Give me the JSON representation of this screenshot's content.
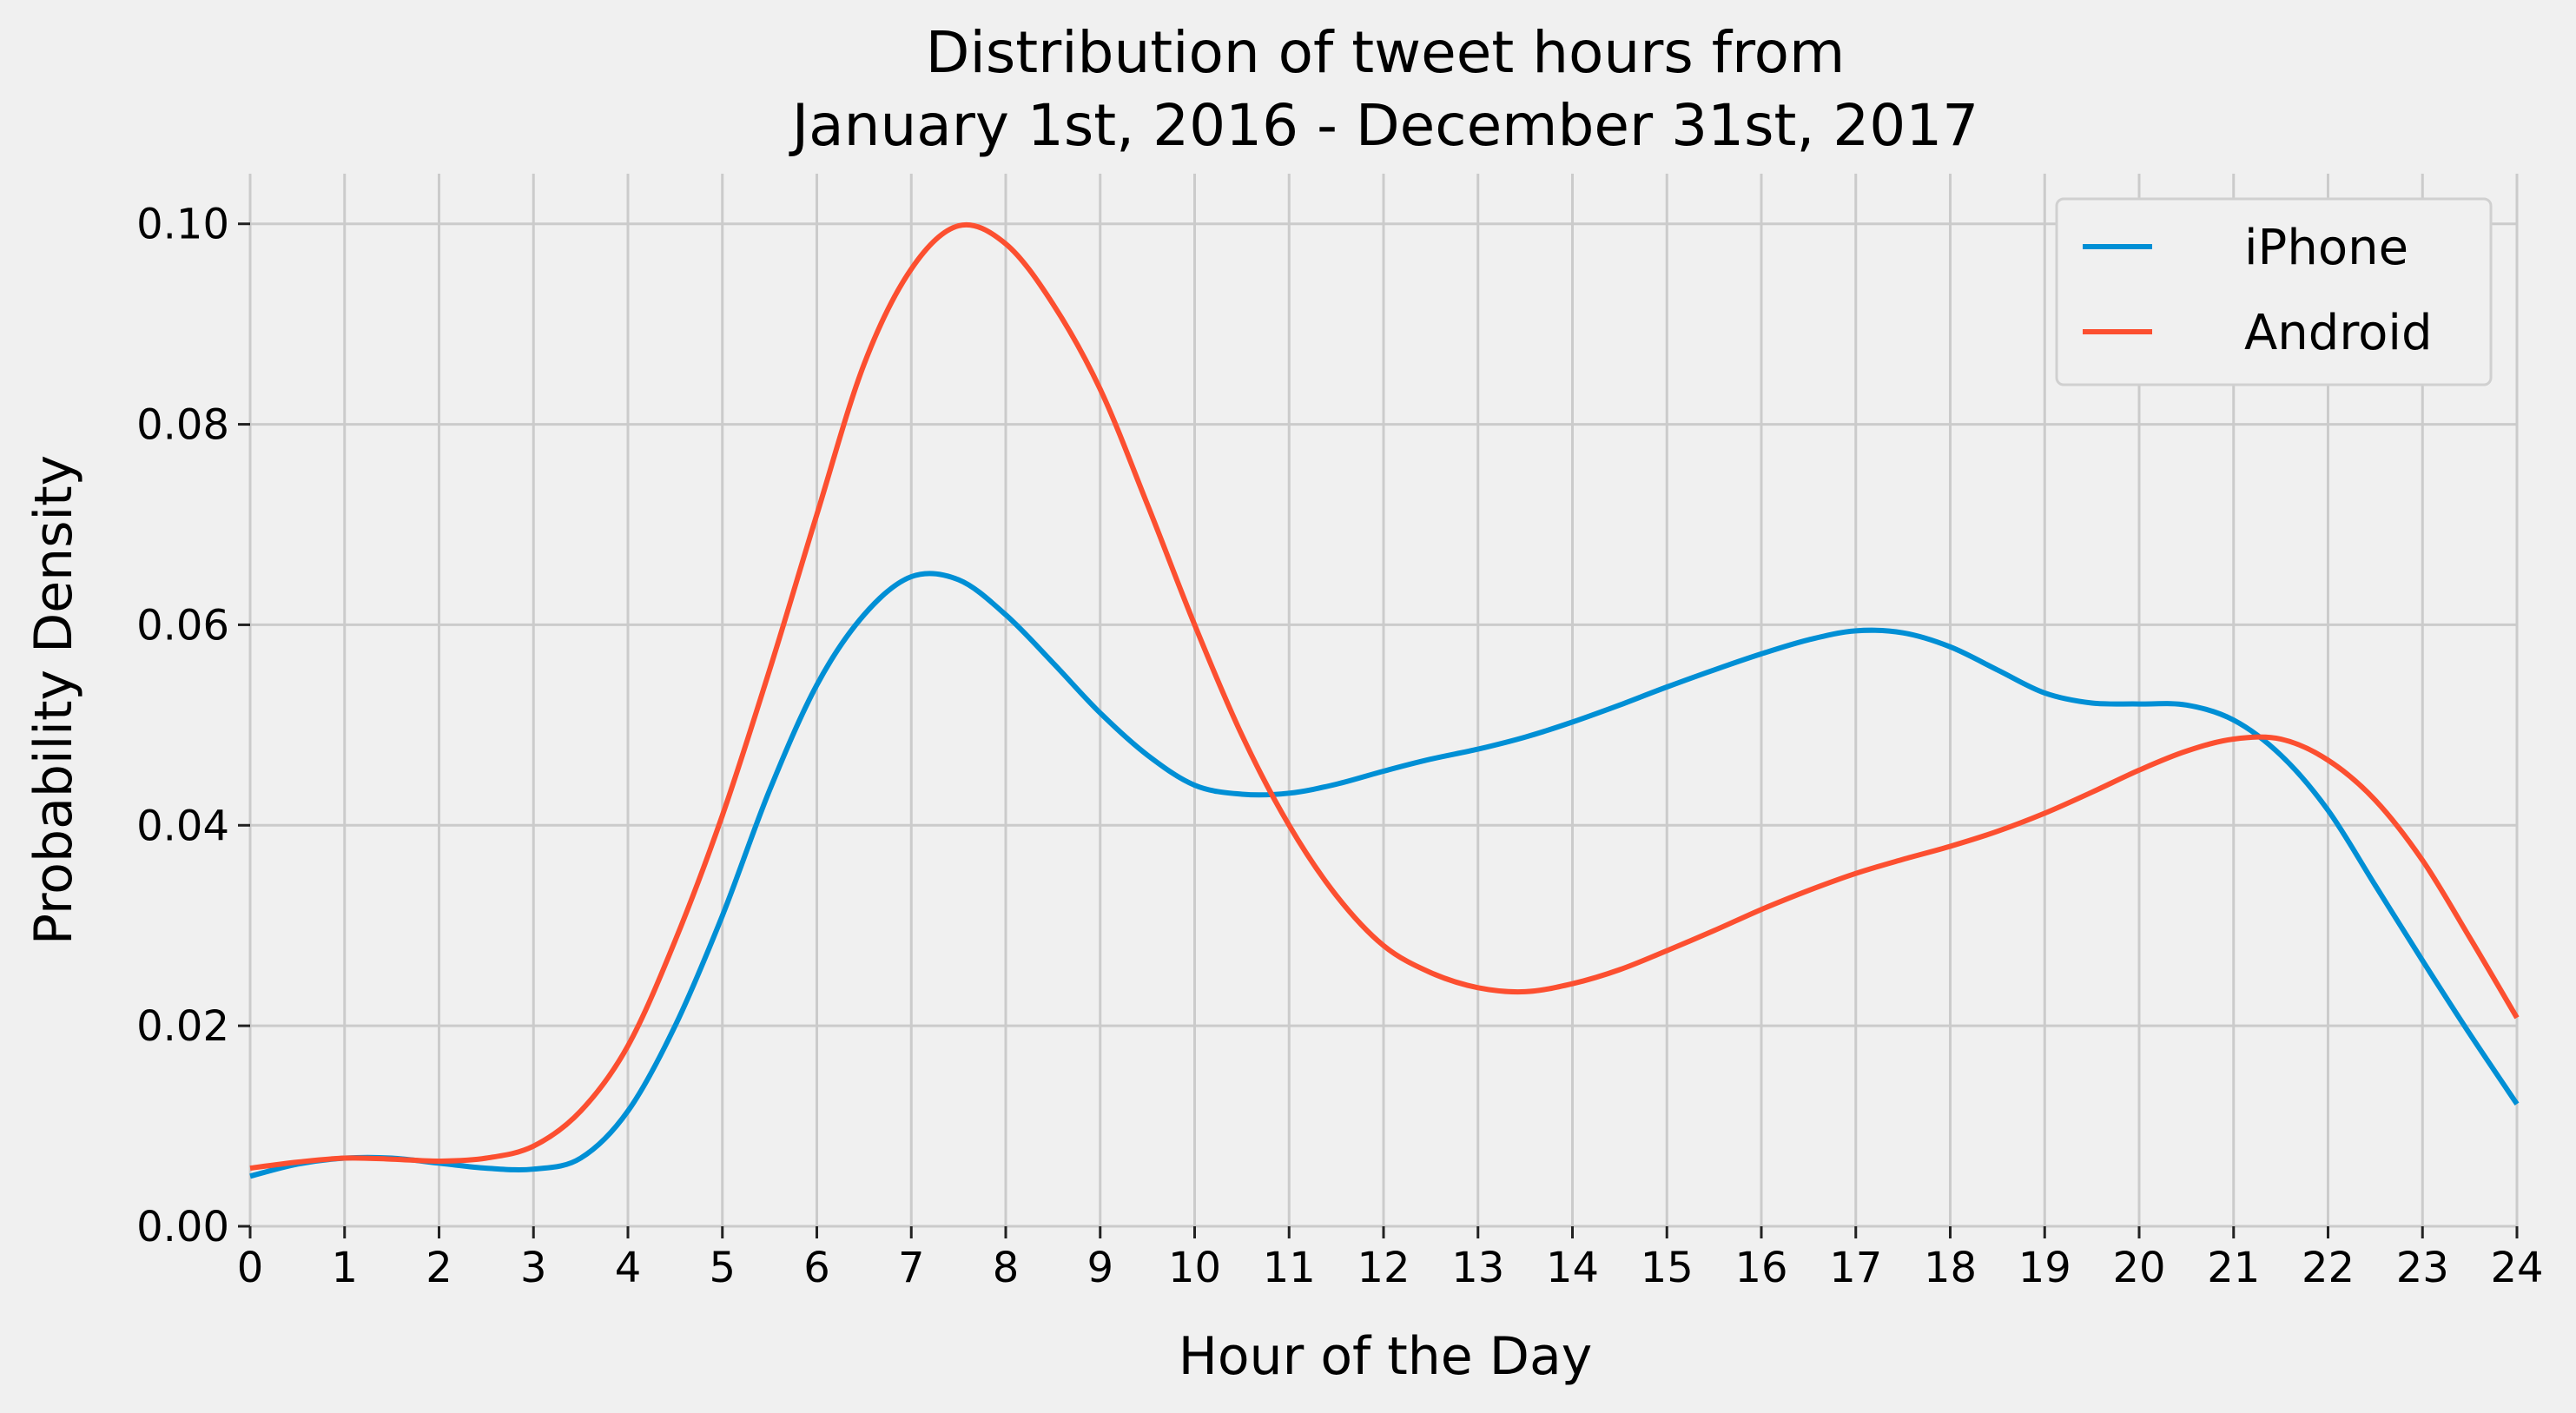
{
  "chart_data": {
    "type": "line",
    "title": "Distribution of tweet hours from\nJanuary 1st, 2016 - December 31st, 2017",
    "xlabel": "Hour of the Day",
    "ylabel": "Probability Density",
    "xlim": [
      0,
      24
    ],
    "ylim": [
      0,
      0.105
    ],
    "xticks": [
      0,
      1,
      2,
      3,
      4,
      5,
      6,
      7,
      8,
      9,
      10,
      11,
      12,
      13,
      14,
      15,
      16,
      17,
      18,
      19,
      20,
      21,
      22,
      23,
      24
    ],
    "yticks": [
      0.0,
      0.02,
      0.04,
      0.06,
      0.08,
      0.1
    ],
    "ytick_labels": [
      "0.00",
      "0.02",
      "0.04",
      "0.06",
      "0.08",
      "0.10"
    ],
    "grid": true,
    "legend_position": "top-right",
    "series": [
      {
        "name": "iPhone",
        "color": "#008fd5",
        "x": [
          0,
          0.5,
          1,
          1.5,
          2,
          2.5,
          3,
          3.5,
          4,
          4.5,
          5,
          5.5,
          6,
          6.5,
          7,
          7.5,
          8,
          8.5,
          9,
          9.5,
          10,
          10.5,
          11,
          11.5,
          12,
          12.5,
          13,
          13.5,
          14,
          14.5,
          15,
          15.5,
          16,
          16.5,
          17,
          17.5,
          18,
          18.5,
          19,
          19.5,
          20,
          20.5,
          21,
          21.5,
          22,
          22.5,
          23,
          23.5,
          24
        ],
        "y": [
          0.005,
          0.0062,
          0.0068,
          0.0068,
          0.0063,
          0.0058,
          0.0057,
          0.0068,
          0.0115,
          0.02,
          0.031,
          0.0435,
          0.054,
          0.061,
          0.0648,
          0.0645,
          0.061,
          0.0562,
          0.0512,
          0.047,
          0.044,
          0.0431,
          0.0432,
          0.0441,
          0.0454,
          0.0466,
          0.0476,
          0.0488,
          0.0503,
          0.052,
          0.0538,
          0.0555,
          0.0571,
          0.0585,
          0.0594,
          0.0592,
          0.0578,
          0.0555,
          0.0532,
          0.0522,
          0.0521,
          0.052,
          0.0505,
          0.047,
          0.0415,
          0.034,
          0.0265,
          0.0192,
          0.0122
        ]
      },
      {
        "name": "Android",
        "color": "#fc4f30",
        "x": [
          0,
          0.5,
          1,
          1.5,
          2,
          2.5,
          3,
          3.5,
          4,
          4.5,
          5,
          5.5,
          6,
          6.5,
          7,
          7.5,
          8,
          8.5,
          9,
          9.5,
          10,
          10.5,
          11,
          11.5,
          12,
          12.5,
          13,
          13.5,
          14,
          14.5,
          15,
          15.5,
          16,
          16.5,
          17,
          17.5,
          18,
          18.5,
          19,
          19.5,
          20,
          20.5,
          21,
          21.5,
          22,
          22.5,
          23,
          23.5,
          24
        ],
        "y": [
          0.0058,
          0.0064,
          0.0068,
          0.0067,
          0.0065,
          0.0068,
          0.008,
          0.0115,
          0.018,
          0.0285,
          0.041,
          0.0555,
          0.071,
          0.086,
          0.0955,
          0.0998,
          0.098,
          0.092,
          0.0835,
          0.072,
          0.06,
          0.049,
          0.04,
          0.033,
          0.028,
          0.0253,
          0.0238,
          0.0234,
          0.0242,
          0.0256,
          0.0275,
          0.0295,
          0.0316,
          0.0335,
          0.0352,
          0.0366,
          0.0379,
          0.0394,
          0.0412,
          0.0433,
          0.0455,
          0.0474,
          0.0486,
          0.0486,
          0.0465,
          0.0425,
          0.0365,
          0.0288,
          0.0208
        ]
      }
    ]
  }
}
